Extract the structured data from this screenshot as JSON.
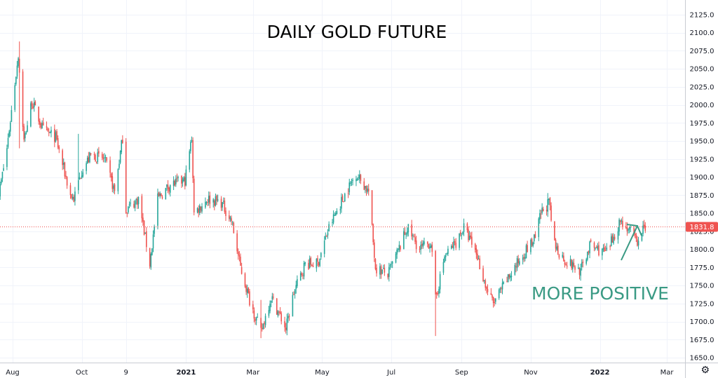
{
  "chart_data": {
    "type": "candlestick",
    "title": "DAILY GOLD FUTURE",
    "annotation": "MORE POSITIVE",
    "last_price": "1831.8",
    "ylim": [
      1640,
      2140
    ],
    "y_ticks": [
      "2125.0",
      "2100.0",
      "2075.0",
      "2050.0",
      "2025.0",
      "2000.0",
      "1975.0",
      "1950.0",
      "1925.0",
      "1900.0",
      "1875.0",
      "1850.0",
      "1825.0",
      "1800.0",
      "1775.0",
      "1750.0",
      "1725.0",
      "1700.0",
      "1675.0",
      "1650.0"
    ],
    "x_ticks": [
      {
        "label": "Aug",
        "date": "2020-08-01",
        "bold": false
      },
      {
        "label": "Oct",
        "date": "2020-10-01",
        "bold": false
      },
      {
        "label": "9",
        "date": "2020-11-09",
        "bold": false
      },
      {
        "label": "2021",
        "date": "2021-01-01",
        "bold": true
      },
      {
        "label": "Mar",
        "date": "2021-03-01",
        "bold": false
      },
      {
        "label": "May",
        "date": "2021-05-01",
        "bold": false
      },
      {
        "label": "Jul",
        "date": "2021-07-01",
        "bold": false
      },
      {
        "label": "Sep",
        "date": "2021-09-01",
        "bold": false
      },
      {
        "label": "Nov",
        "date": "2021-11-01",
        "bold": false
      },
      {
        "label": "2022",
        "date": "2022-01-01",
        "bold": true
      },
      {
        "label": "Mar",
        "date": "2022-03-01",
        "bold": false
      }
    ],
    "x_range": [
      "2020-07-15",
      "2022-03-15"
    ],
    "colors": {
      "up": "#26a69a",
      "down": "#ef5350",
      "annotation": "#3a9a84",
      "price_label": "#ef5350",
      "grid": "#f0f3fa",
      "price_line": "#ef5350"
    },
    "close_path": [
      [
        "2020-07-17",
        1850
      ],
      [
        "2020-07-27",
        1940
      ],
      [
        "2020-08-06",
        2070
      ],
      [
        "2020-08-11",
        1950
      ],
      [
        "2020-08-18",
        2005
      ],
      [
        "2020-08-28",
        1965
      ],
      [
        "2020-09-08",
        1955
      ],
      [
        "2020-09-21",
        1875
      ],
      [
        "2020-09-24",
        1870
      ],
      [
        "2020-10-01",
        1910
      ],
      [
        "2020-10-09",
        1930
      ],
      [
        "2020-10-21",
        1925
      ],
      [
        "2020-10-30",
        1880
      ],
      [
        "2020-11-06",
        1955
      ],
      [
        "2020-11-09",
        1855
      ],
      [
        "2020-11-20",
        1870
      ],
      [
        "2020-11-30",
        1780
      ],
      [
        "2020-12-07",
        1870
      ],
      [
        "2020-12-18",
        1890
      ],
      [
        "2020-12-31",
        1895
      ],
      [
        "2021-01-06",
        1955
      ],
      [
        "2021-01-08",
        1850
      ],
      [
        "2021-01-20",
        1870
      ],
      [
        "2021-02-01",
        1865
      ],
      [
        "2021-02-10",
        1840
      ],
      [
        "2021-02-18",
        1775
      ],
      [
        "2021-02-26",
        1730
      ],
      [
        "2021-03-08",
        1685
      ],
      [
        "2021-03-17",
        1735
      ],
      [
        "2021-03-30",
        1690
      ],
      [
        "2021-04-06",
        1740
      ],
      [
        "2021-04-16",
        1780
      ],
      [
        "2021-04-27",
        1780
      ],
      [
        "2021-05-07",
        1830
      ],
      [
        "2021-05-19",
        1870
      ],
      [
        "2021-05-31",
        1905
      ],
      [
        "2021-06-11",
        1880
      ],
      [
        "2021-06-17",
        1775
      ],
      [
        "2021-06-28",
        1765
      ],
      [
        "2021-07-09",
        1805
      ],
      [
        "2021-07-15",
        1830
      ],
      [
        "2021-07-26",
        1800
      ],
      [
        "2021-08-05",
        1810
      ],
      [
        "2021-08-09",
        1730
      ],
      [
        "2021-08-17",
        1790
      ],
      [
        "2021-08-27",
        1810
      ],
      [
        "2021-09-03",
        1830
      ],
      [
        "2021-09-14",
        1795
      ],
      [
        "2021-09-23",
        1745
      ],
      [
        "2021-09-29",
        1725
      ],
      [
        "2021-10-14",
        1765
      ],
      [
        "2021-10-26",
        1795
      ],
      [
        "2021-11-05",
        1815
      ],
      [
        "2021-11-10",
        1850
      ],
      [
        "2021-11-17",
        1865
      ],
      [
        "2021-11-22",
        1805
      ],
      [
        "2021-12-01",
        1785
      ],
      [
        "2021-12-15",
        1770
      ],
      [
        "2021-12-23",
        1805
      ],
      [
        "2022-01-07",
        1795
      ],
      [
        "2022-01-19",
        1840
      ],
      [
        "2022-01-25",
        1830
      ],
      [
        "2022-02-04",
        1808
      ],
      [
        "2022-02-07",
        1825
      ],
      [
        "2022-02-10",
        1832
      ]
    ],
    "wick_spikes": [
      [
        "2020-08-07",
        2088,
        1940
      ],
      [
        "2020-09-28",
        1960,
        1878
      ],
      [
        "2021-03-08",
        1730,
        1677
      ],
      [
        "2021-08-09",
        1760,
        1680
      ],
      [
        "2021-11-16",
        1878,
        1845
      ]
    ]
  }
}
